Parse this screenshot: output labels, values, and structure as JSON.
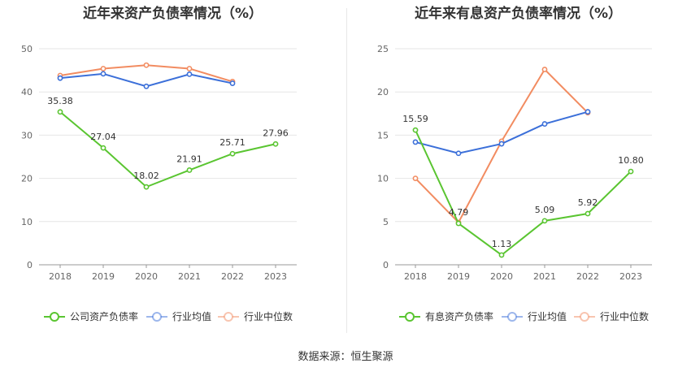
{
  "chart_data": [
    {
      "type": "line",
      "title": "近年来资产负债率情况（%）",
      "categories": [
        "2018",
        "2019",
        "2020",
        "2021",
        "2022",
        "2023"
      ],
      "ylim": [
        0,
        50
      ],
      "yticks": [
        0,
        10,
        20,
        30,
        40,
        50
      ],
      "grid": true,
      "legend_position": "bottom",
      "series": [
        {
          "name": "公司资产负债率",
          "color": "#5ac531",
          "values": [
            35.38,
            27.04,
            18.02,
            21.91,
            25.71,
            27.96
          ],
          "labels": [
            "35.38",
            "27.04",
            "18.02",
            "21.91",
            "25.71",
            "27.96"
          ]
        },
        {
          "name": "行业均值",
          "color": "#3b6fd9",
          "values": [
            43.2,
            44.2,
            41.3,
            44.1,
            42.0,
            null
          ]
        },
        {
          "name": "行业中位数",
          "color": "#f28c61",
          "values": [
            43.8,
            45.4,
            46.2,
            45.4,
            42.4,
            null
          ]
        }
      ]
    },
    {
      "type": "line",
      "title": "近年来有息资产负债率情况（%）",
      "categories": [
        "2018",
        "2019",
        "2020",
        "2021",
        "2022",
        "2023"
      ],
      "ylim": [
        0,
        25
      ],
      "yticks": [
        0,
        5,
        10,
        15,
        20,
        25
      ],
      "grid": true,
      "legend_position": "bottom",
      "series": [
        {
          "name": "有息资产负债率",
          "color": "#5ac531",
          "values": [
            15.59,
            4.79,
            1.13,
            5.09,
            5.92,
            10.8
          ],
          "labels": [
            "15.59",
            "4.79",
            "1.13",
            "5.09",
            "5.92",
            "10.80"
          ]
        },
        {
          "name": "行业均值",
          "color": "#3b6fd9",
          "values": [
            14.2,
            12.9,
            14.0,
            16.3,
            17.7,
            null
          ]
        },
        {
          "name": "行业中位数",
          "color": "#f28c61",
          "values": [
            10.0,
            4.9,
            14.3,
            22.6,
            17.6,
            null
          ]
        }
      ]
    }
  ],
  "footer": {
    "source": "数据来源：恒生聚源"
  }
}
